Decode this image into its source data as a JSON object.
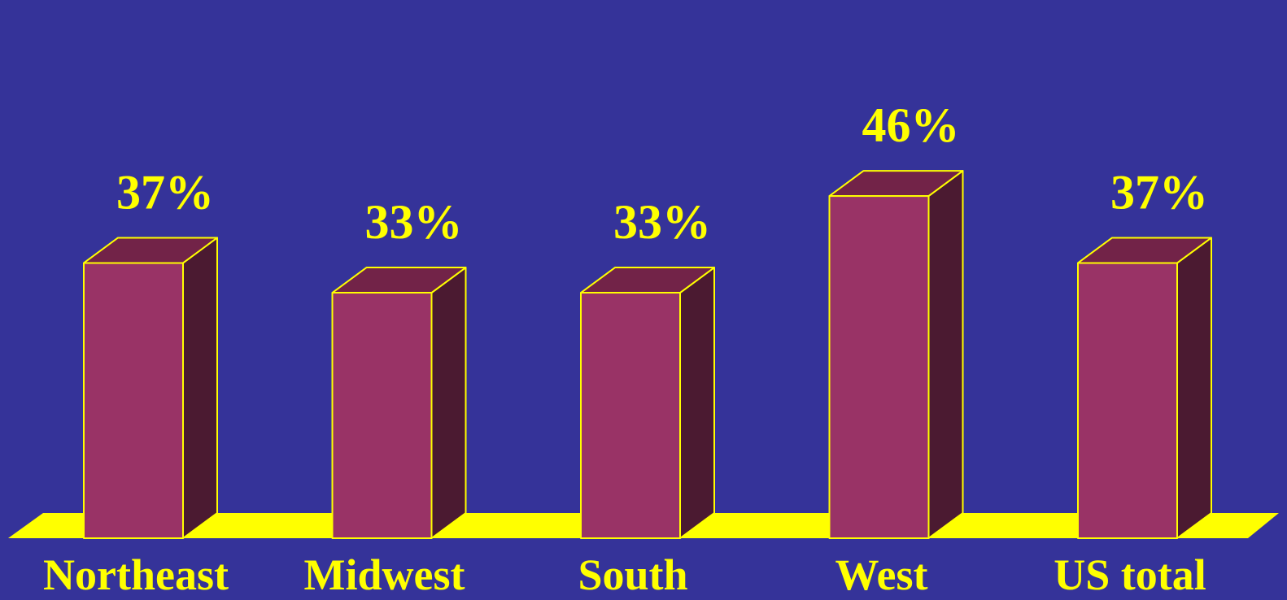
{
  "chart_data": {
    "type": "bar",
    "style": "3d",
    "categories": [
      "Northeast",
      "Midwest",
      "South",
      "West",
      "US total"
    ],
    "values": [
      37,
      33,
      33,
      46,
      37
    ],
    "value_labels": [
      "37%",
      "33%",
      "33%",
      "46%",
      "37%"
    ],
    "title": "",
    "xlabel": "",
    "ylabel": "",
    "ylim": [
      0,
      100
    ],
    "grid": false,
    "legend": "none"
  },
  "colors": {
    "background": "#353399",
    "bar_front": "#993366",
    "bar_top": "#722348",
    "bar_side": "#4b1a31",
    "floor": "#ffff00",
    "text": "#ffff00",
    "outline": "#ffff00"
  }
}
